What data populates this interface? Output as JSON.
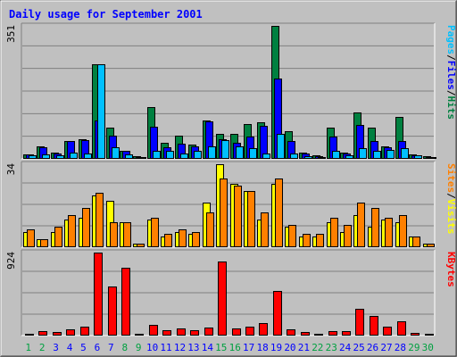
{
  "title": "Daily usage for September 2001",
  "colors": {
    "background": "#c0c0c0",
    "title": "#0000ff",
    "hits": "#008040",
    "files": "#0000ff",
    "pages": "#00c0ff",
    "visits": "#ffff00",
    "sites": "#ff8000",
    "kbytes": "#ff0000",
    "weekend_label": "#00a040",
    "weekday_label": "#0000ff"
  },
  "chart_data": [
    {
      "type": "bar",
      "name": "hits-files-pages",
      "ymax_label": "351",
      "legend": [
        "Pages",
        "/",
        "Files",
        "/",
        "Hits"
      ],
      "ylim": [
        0,
        351
      ],
      "x": [
        "1",
        "2",
        "3",
        "4",
        "5",
        "6",
        "7",
        "8",
        "9",
        "10",
        "11",
        "12",
        "13",
        "14",
        "15",
        "16",
        "17",
        "18",
        "19",
        "20",
        "21",
        "22",
        "23",
        "24",
        "25",
        "26",
        "27",
        "28",
        "29",
        "30"
      ],
      "series": [
        {
          "name": "Hits",
          "values": [
            10,
            30,
            15,
            45,
            50,
            250,
            80,
            20,
            4,
            135,
            40,
            60,
            35,
            100,
            65,
            65,
            90,
            95,
            351,
            70,
            15,
            6,
            80,
            15,
            120,
            80,
            30,
            110,
            10,
            4
          ]
        },
        {
          "name": "Files",
          "values": [
            10,
            28,
            12,
            45,
            48,
            100,
            60,
            18,
            3,
            82,
            28,
            38,
            32,
            98,
            50,
            40,
            58,
            85,
            210,
            45,
            12,
            5,
            58,
            12,
            88,
            45,
            28,
            45,
            8,
            3
          ]
        },
        {
          "name": "Pages",
          "values": [
            8,
            10,
            8,
            15,
            12,
            250,
            28,
            10,
            2,
            20,
            18,
            12,
            20,
            32,
            48,
            30,
            25,
            12,
            65,
            12,
            5,
            3,
            18,
            8,
            25,
            20,
            22,
            25,
            6,
            2
          ]
        }
      ]
    },
    {
      "type": "bar",
      "name": "visits-sites",
      "ymax_label": "34",
      "legend": [
        "Sites",
        "/",
        "Visits"
      ],
      "ylim": [
        0,
        34
      ],
      "x": [
        "1",
        "2",
        "3",
        "4",
        "5",
        "6",
        "7",
        "8",
        "9",
        "10",
        "11",
        "12",
        "13",
        "14",
        "15",
        "16",
        "17",
        "18",
        "19",
        "20",
        "21",
        "22",
        "23",
        "24",
        "25",
        "26",
        "27",
        "28",
        "29",
        "30"
      ],
      "series": [
        {
          "name": "Visits",
          "values": [
            6,
            3,
            6,
            11,
            12,
            21,
            19,
            10,
            1,
            11,
            4,
            6,
            5,
            18,
            34,
            26,
            23,
            11,
            26,
            8,
            4,
            4,
            10,
            6,
            13,
            8,
            11,
            10,
            4,
            1
          ]
        },
        {
          "name": "Sites",
          "values": [
            7,
            3,
            8,
            13,
            16,
            22,
            10,
            10,
            1,
            12,
            5,
            7,
            6,
            14,
            28,
            25,
            23,
            14,
            28,
            9,
            5,
            5,
            12,
            9,
            18,
            16,
            12,
            13,
            4,
            1
          ]
        }
      ]
    },
    {
      "type": "bar",
      "name": "kbytes",
      "ymax_label": "924",
      "legend": [
        "KBytes"
      ],
      "ylim": [
        0,
        924
      ],
      "x": [
        "1",
        "2",
        "3",
        "4",
        "5",
        "6",
        "7",
        "8",
        "9",
        "10",
        "11",
        "12",
        "13",
        "14",
        "15",
        "16",
        "17",
        "18",
        "19",
        "20",
        "21",
        "22",
        "23",
        "24",
        "25",
        "26",
        "27",
        "28",
        "29",
        "30"
      ],
      "series": [
        {
          "name": "KBytes",
          "values": [
            8,
            40,
            30,
            60,
            90,
            924,
            540,
            750,
            5,
            110,
            50,
            70,
            55,
            85,
            820,
            70,
            90,
            130,
            490,
            60,
            30,
            8,
            45,
            40,
            290,
            210,
            95,
            150,
            20,
            8
          ]
        }
      ]
    }
  ],
  "x_labels": [
    "1",
    "2",
    "3",
    "4",
    "5",
    "6",
    "7",
    "8",
    "9",
    "10",
    "11",
    "12",
    "13",
    "14",
    "15",
    "16",
    "17",
    "18",
    "19",
    "20",
    "21",
    "22",
    "23",
    "24",
    "25",
    "26",
    "27",
    "28",
    "29",
    "30"
  ],
  "weekend_days": [
    "1",
    "2",
    "8",
    "9",
    "15",
    "16",
    "22",
    "23",
    "29",
    "30"
  ]
}
